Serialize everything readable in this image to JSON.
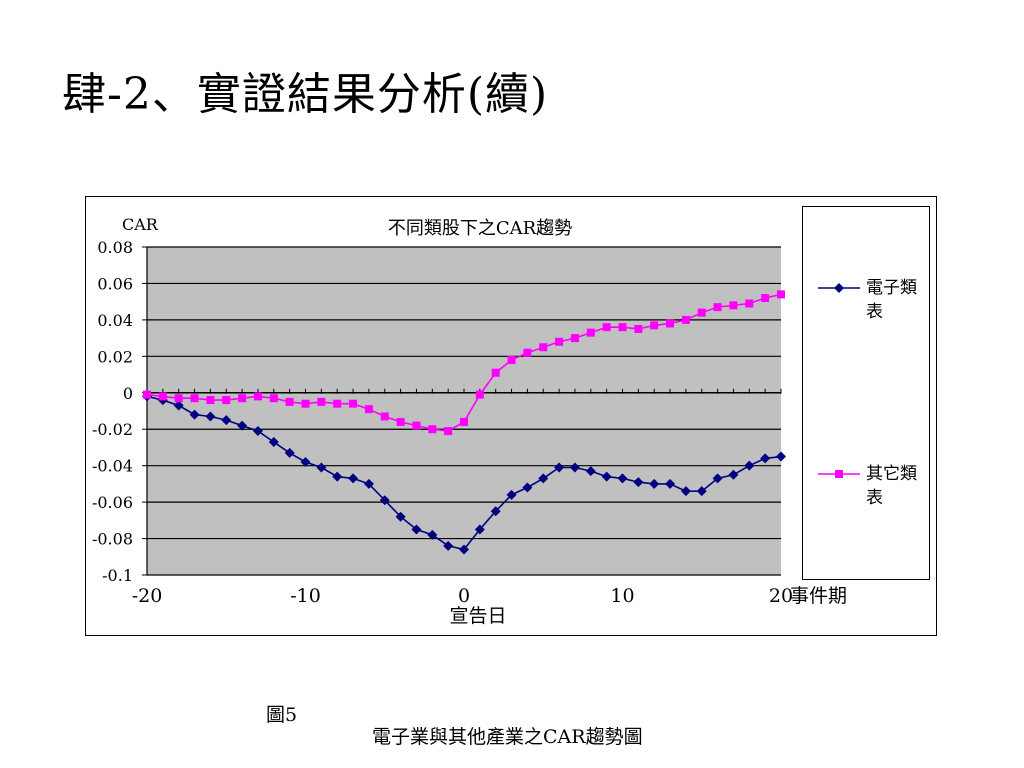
{
  "slide": {
    "title": "肆-2、實證結果分析(續)"
  },
  "caption": {
    "figure_label": "圖5",
    "description": "電子業與其他產業之CAR趨勢圖"
  },
  "chart_data": {
    "type": "line",
    "title": "不同類股下之CAR趨勢",
    "ylabel": "CAR",
    "xlabel": "宣告日",
    "x_axis_end_label": "事件期",
    "xlim": [
      -20,
      20
    ],
    "ylim": [
      -0.1,
      0.08
    ],
    "x_ticks": [
      -20,
      -10,
      0,
      10,
      20
    ],
    "x_tick_labels": [
      "-20",
      "-10",
      "0",
      "10",
      "20"
    ],
    "y_ticks": [
      0.08,
      0.06,
      0.04,
      0.02,
      0,
      -0.02,
      -0.04,
      -0.06,
      -0.08,
      -0.1
    ],
    "y_tick_labels": [
      "0.08",
      "0.06",
      "0.04",
      "0.02",
      "0",
      "-0.02",
      "-0.04",
      "-0.06",
      "-0.08",
      "-0.1"
    ],
    "grid": true,
    "plot_background": "#c0c0c0",
    "legend_position": "right",
    "x": [
      -20,
      -19,
      -18,
      -17,
      -16,
      -15,
      -14,
      -13,
      -12,
      -11,
      -10,
      -9,
      -8,
      -7,
      -6,
      -5,
      -4,
      -3,
      -2,
      -1,
      0,
      1,
      2,
      3,
      4,
      5,
      6,
      7,
      8,
      9,
      10,
      11,
      12,
      13,
      14,
      15,
      16,
      17,
      18,
      19,
      20
    ],
    "series": [
      {
        "name": "電子類表",
        "color": "#000080",
        "marker": "diamond",
        "values": [
          -0.002,
          -0.004,
          -0.007,
          -0.012,
          -0.013,
          -0.015,
          -0.018,
          -0.021,
          -0.027,
          -0.033,
          -0.038,
          -0.041,
          -0.046,
          -0.047,
          -0.05,
          -0.059,
          -0.068,
          -0.075,
          -0.078,
          -0.084,
          -0.086,
          -0.075,
          -0.065,
          -0.056,
          -0.052,
          -0.047,
          -0.041,
          -0.041,
          -0.043,
          -0.046,
          -0.047,
          -0.049,
          -0.05,
          -0.05,
          -0.054,
          -0.054,
          -0.047,
          -0.045,
          -0.04,
          -0.036,
          -0.035
        ]
      },
      {
        "name": "其它類表",
        "color": "#ff00ff",
        "marker": "square",
        "values": [
          -0.001,
          -0.002,
          -0.003,
          -0.003,
          -0.004,
          -0.004,
          -0.003,
          -0.002,
          -0.003,
          -0.005,
          -0.006,
          -0.005,
          -0.006,
          -0.006,
          -0.009,
          -0.013,
          -0.016,
          -0.018,
          -0.02,
          -0.021,
          -0.016,
          -0.001,
          0.011,
          0.018,
          0.022,
          0.025,
          0.028,
          0.03,
          0.033,
          0.036,
          0.036,
          0.035,
          0.037,
          0.038,
          0.04,
          0.044,
          0.047,
          0.048,
          0.049,
          0.052,
          0.054
        ]
      }
    ]
  }
}
